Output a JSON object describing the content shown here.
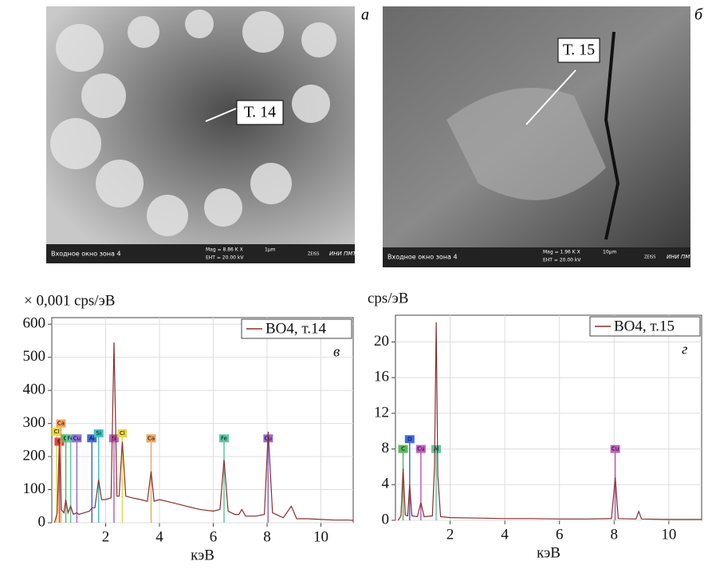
{
  "images": [
    {
      "panel": "а",
      "point_label": "Т. 14",
      "caption": "Входное окно зона 4",
      "mag": "Mag =  8.86 K X",
      "eht": "EHT = 20.00 kV",
      "scale": "1μm",
      "brand": "ZEISS",
      "lab": "ИНИ ПМТ"
    },
    {
      "panel": "б",
      "point_label": "Т. 15",
      "caption": "Входное окно зона 4",
      "mag": "Mag =  1.96 K X",
      "eht": "EHT = 20.00 kV",
      "scale": "10μm",
      "brand": "ZEISS",
      "lab": "ИНИ ПМТ"
    }
  ],
  "chart_data": [
    {
      "type": "line",
      "panel": "в",
      "y_label": "× 0,001 cps/эВ",
      "x_label": "кэВ",
      "grid": true,
      "xlim": [
        0,
        11.2
      ],
      "ylim": [
        0,
        620
      ],
      "xticks": [
        2,
        4,
        6,
        8,
        10
      ],
      "yticks": [
        0,
        100,
        200,
        300,
        400,
        500,
        600
      ],
      "series": [
        {
          "name": "ВО4, т.14",
          "color": "#8b2e2e",
          "x": [
            0.1,
            0.2,
            0.28,
            0.35,
            0.45,
            0.52,
            0.6,
            0.7,
            0.8,
            0.93,
            1.0,
            1.2,
            1.4,
            1.49,
            1.6,
            1.74,
            1.85,
            2.0,
            2.2,
            2.31,
            2.42,
            2.5,
            2.62,
            2.75,
            3.0,
            3.3,
            3.55,
            3.69,
            3.8,
            4.0,
            4.5,
            5.0,
            5.5,
            6.0,
            6.25,
            6.4,
            6.55,
            6.8,
            6.95,
            7.06,
            7.2,
            7.6,
            7.9,
            8.04,
            8.2,
            8.6,
            8.9,
            9.1,
            9.5,
            10,
            10.5,
            11,
            11.2
          ],
          "values": [
            0,
            30,
            250,
            40,
            30,
            70,
            30,
            50,
            25,
            30,
            25,
            30,
            35,
            45,
            45,
            130,
            70,
            70,
            75,
            545,
            80,
            80,
            245,
            80,
            75,
            70,
            65,
            155,
            65,
            70,
            60,
            50,
            40,
            35,
            40,
            190,
            35,
            25,
            25,
            40,
            20,
            20,
            25,
            275,
            30,
            15,
            50,
            12,
            12,
            10,
            8,
            8,
            7
          ]
        }
      ],
      "markers": [
        {
          "label": "Cl",
          "x": 0.18,
          "y": 275,
          "color": "#e8d84a"
        },
        {
          "label": "C",
          "x": 0.28,
          "y": 245,
          "color": "#e84040"
        },
        {
          "label": "Ca",
          "x": 0.34,
          "y": 300,
          "color": "#f4a460"
        },
        {
          "label": "O",
          "x": 0.52,
          "y": 255,
          "color": "#5cb85c"
        },
        {
          "label": "Fe",
          "x": 0.7,
          "y": 255,
          "color": "#5fc9a0"
        },
        {
          "label": "Cu",
          "x": 0.93,
          "y": 255,
          "color": "#9370db"
        },
        {
          "label": "Al",
          "x": 1.49,
          "y": 255,
          "color": "#4169e1"
        },
        {
          "label": "Si",
          "x": 1.74,
          "y": 270,
          "color": "#40c0c0"
        },
        {
          "label": "S",
          "x": 2.31,
          "y": 255,
          "color": "#c060c0"
        },
        {
          "label": "Cl",
          "x": 2.62,
          "y": 270,
          "color": "#e8d84a"
        },
        {
          "label": "Ca",
          "x": 3.69,
          "y": 255,
          "color": "#f4a460"
        },
        {
          "label": "Fe",
          "x": 6.4,
          "y": 255,
          "color": "#5fc9a0"
        },
        {
          "label": "Cu",
          "x": 8.04,
          "y": 255,
          "color": "#9370db"
        }
      ]
    },
    {
      "type": "line",
      "panel": "г",
      "y_label": "cps/эВ",
      "x_label": "кэВ",
      "grid": true,
      "xlim": [
        0,
        11.2
      ],
      "ylim": [
        0,
        23
      ],
      "xticks": [
        2,
        4,
        6,
        8,
        10
      ],
      "yticks": [
        0,
        4,
        8,
        12,
        16,
        20
      ],
      "series": [
        {
          "name": "ВО4, т.15",
          "color": "#8b2e2e",
          "x": [
            0.1,
            0.2,
            0.28,
            0.36,
            0.45,
            0.52,
            0.6,
            0.8,
            0.93,
            1.05,
            1.35,
            1.43,
            1.49,
            1.55,
            1.65,
            2.0,
            3.0,
            4.0,
            5.0,
            6.0,
            7.0,
            7.9,
            8.04,
            8.15,
            8.8,
            8.9,
            9.0,
            10,
            11.2
          ],
          "values": [
            0,
            0.5,
            5.8,
            0.6,
            0.5,
            4,
            0.5,
            0.4,
            2,
            0.4,
            0.5,
            6,
            22.2,
            5,
            0.4,
            0.3,
            0.25,
            0.2,
            0.2,
            0.15,
            0.15,
            0.2,
            4.8,
            0.2,
            0.15,
            1,
            0.15,
            0.1,
            0.1
          ]
        }
      ],
      "markers": [
        {
          "label": "C",
          "x": 0.28,
          "y": 8,
          "color": "#5cb85c"
        },
        {
          "label": "O",
          "x": 0.52,
          "y": 9.1,
          "color": "#4169e1"
        },
        {
          "label": "Cu",
          "x": 0.93,
          "y": 8,
          "color": "#c060c0"
        },
        {
          "label": "Al",
          "x": 1.49,
          "y": 8,
          "color": "#5fc9a0"
        },
        {
          "label": "Cu",
          "x": 8.04,
          "y": 8,
          "color": "#c060c0"
        }
      ]
    }
  ]
}
